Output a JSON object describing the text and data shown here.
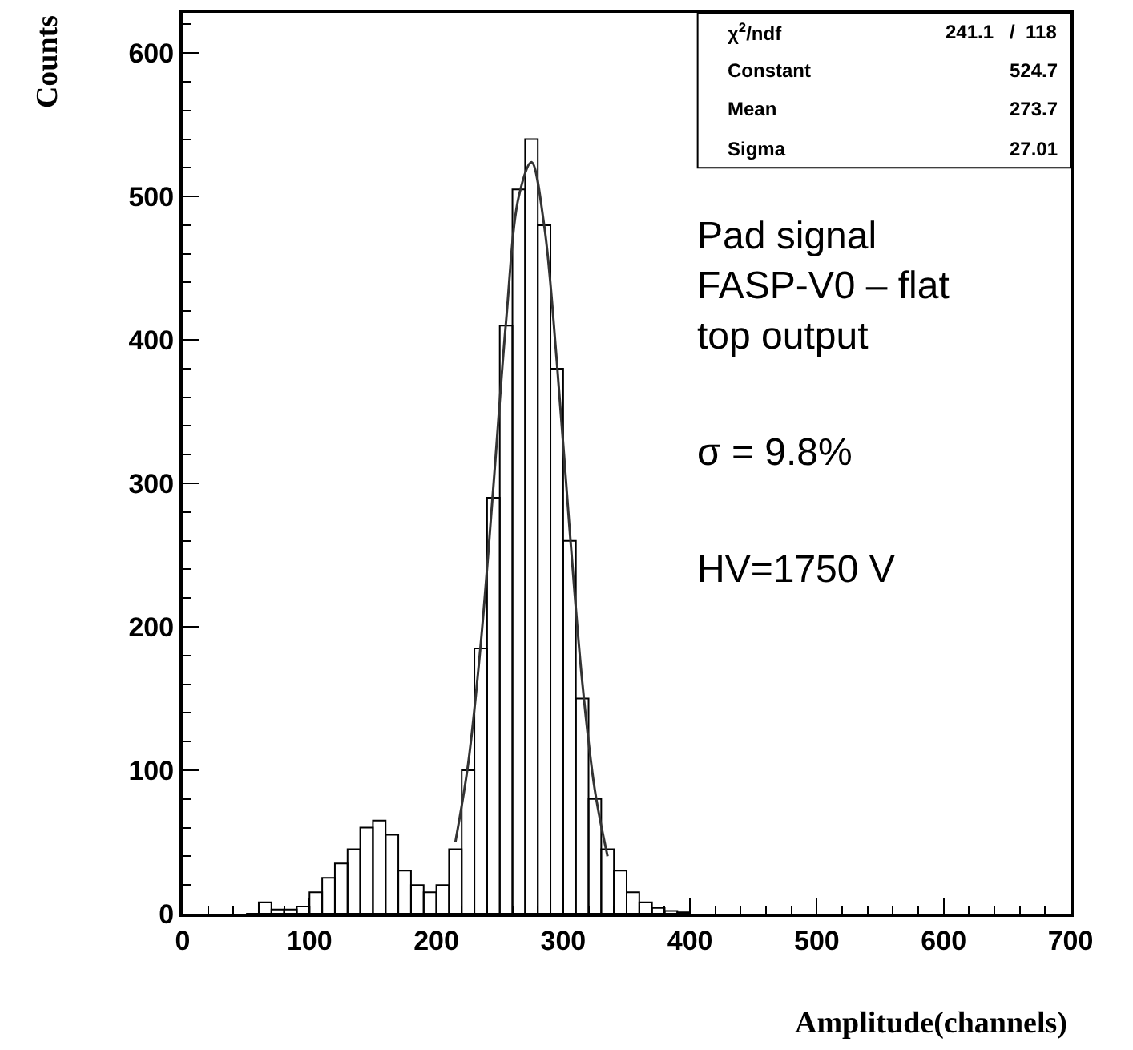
{
  "chart_data": {
    "type": "histogram",
    "xlabel": "Amplitude(channels)",
    "ylabel": "Counts",
    "series": [
      {
        "type": "histogram",
        "color": "#000000",
        "bins": [
          50,
          60,
          70,
          80,
          90,
          100,
          110,
          120,
          130,
          140,
          150,
          160,
          170,
          180,
          190,
          200,
          210,
          220,
          230,
          240,
          250,
          260,
          270,
          280,
          290,
          300,
          310,
          320,
          330,
          340,
          350,
          360,
          370,
          380,
          390,
          400
        ],
        "values": [
          0,
          8,
          3,
          3,
          5,
          15,
          25,
          35,
          45,
          60,
          65,
          55,
          30,
          20,
          15,
          20,
          45,
          100,
          185,
          290,
          410,
          505,
          540,
          480,
          380,
          260,
          150,
          80,
          45,
          30,
          15,
          8,
          4,
          2,
          1
        ]
      },
      {
        "type": "line",
        "color": "#333333",
        "x": [
          215,
          225,
          235,
          245,
          255,
          265,
          275,
          285,
          295,
          305,
          315,
          325,
          335
        ],
        "values": [
          50,
          104,
          188,
          298,
          413,
          500,
          524,
          480,
          385,
          269,
          162,
          86,
          40
        ]
      }
    ],
    "xlim": [
      0,
      700
    ],
    "xticks": [
      0,
      100,
      200,
      300,
      400,
      500,
      600,
      700
    ],
    "ylim": [
      0,
      628
    ],
    "yticks": [
      0,
      100,
      200,
      300,
      400,
      500,
      600
    ],
    "grid": false,
    "annotations": [
      "χ$^{2}$/ndf",
      "241.1   /  118",
      "Constant",
      "524.7",
      "Mean",
      "273.7",
      "Sigma",
      "27.01",
      "Pad signal\nFASP-V0 – flat\ntop output",
      "σ = 9.8%",
      "HV=1750 V"
    ]
  }
}
